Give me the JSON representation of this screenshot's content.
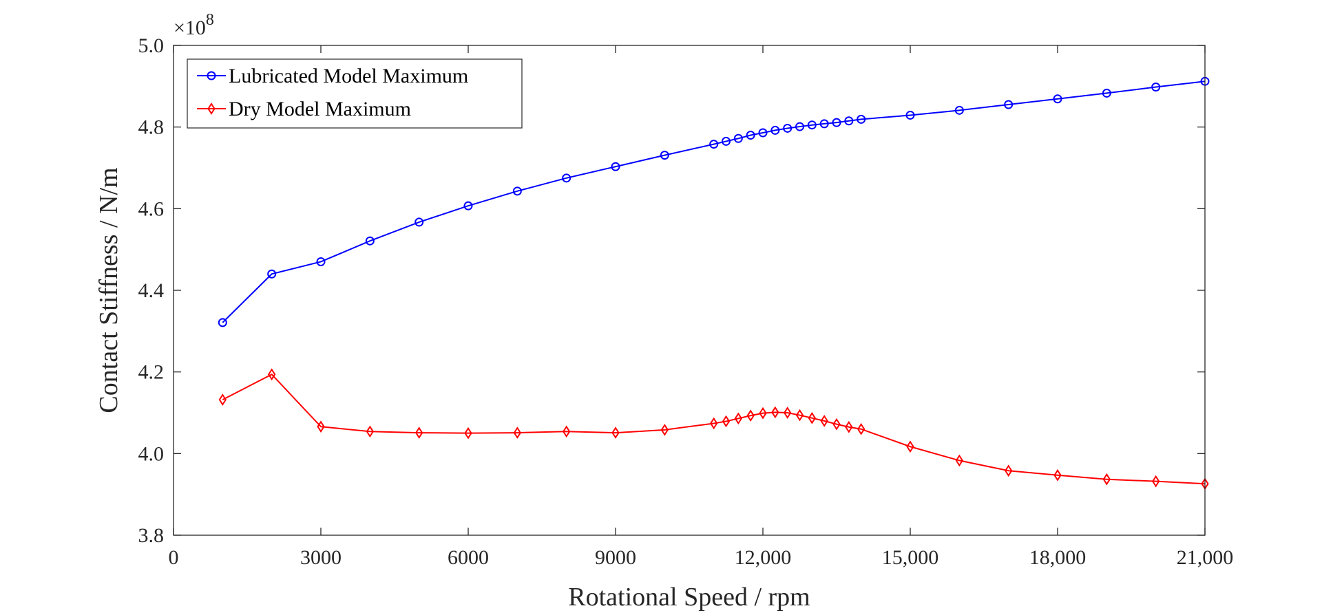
{
  "chart_data": {
    "type": "line",
    "xlabel": "Rotational Speed / rpm",
    "ylabel": "Contact Stiffness / N/m",
    "exponent_label": {
      "base": "×10",
      "power": "8"
    },
    "xlim": [
      0,
      21000
    ],
    "ylim": [
      3.8,
      5.0
    ],
    "x_ticks": [
      0,
      3000,
      6000,
      9000,
      12000,
      15000,
      18000,
      21000
    ],
    "x_tick_labels": [
      "0",
      "3000",
      "6000",
      "9000",
      "12,000",
      "15,000",
      "18,000",
      "21,000"
    ],
    "y_ticks": [
      3.8,
      4.0,
      4.2,
      4.4,
      4.6,
      4.8,
      5.0
    ],
    "y_tick_labels": [
      "3.8",
      "4.0",
      "4.2",
      "4.4",
      "4.6",
      "4.8",
      "5.0"
    ],
    "grid": false,
    "legend_position": "top-left",
    "series": [
      {
        "name": "Lubricated Model Maximum",
        "color": "#0000ff",
        "marker": "circle",
        "x": [
          1000,
          2000,
          3000,
          4000,
          5000,
          6000,
          7000,
          8000,
          9000,
          10000,
          11000,
          11250,
          11500,
          11750,
          12000,
          12250,
          12500,
          12750,
          13000,
          13250,
          13500,
          13750,
          14000,
          15000,
          16000,
          17000,
          18000,
          19000,
          20000,
          21000
        ],
        "y": [
          4.321,
          4.44,
          4.47,
          4.521,
          4.567,
          4.607,
          4.643,
          4.675,
          4.703,
          4.731,
          4.758,
          4.765,
          4.772,
          4.78,
          4.786,
          4.792,
          4.797,
          4.801,
          4.805,
          4.808,
          4.811,
          4.815,
          4.819,
          4.829,
          4.841,
          4.855,
          4.869,
          4.883,
          4.898,
          4.912
        ]
      },
      {
        "name": "Dry Model Maximum",
        "color": "#ff0000",
        "marker": "diamond",
        "x": [
          1000,
          2000,
          3000,
          4000,
          5000,
          6000,
          7000,
          8000,
          9000,
          10000,
          11000,
          11250,
          11500,
          11750,
          12000,
          12250,
          12500,
          12750,
          13000,
          13250,
          13500,
          13750,
          14000,
          15000,
          16000,
          17000,
          18000,
          19000,
          20000,
          21000
        ],
        "y": [
          4.132,
          4.194,
          4.066,
          4.054,
          4.051,
          4.05,
          4.051,
          4.054,
          4.051,
          4.058,
          4.074,
          4.079,
          4.086,
          4.093,
          4.099,
          4.101,
          4.1,
          4.094,
          4.087,
          4.08,
          4.072,
          4.065,
          4.06,
          4.017,
          3.983,
          3.958,
          3.947,
          3.937,
          3.932,
          3.926
        ]
      }
    ]
  }
}
